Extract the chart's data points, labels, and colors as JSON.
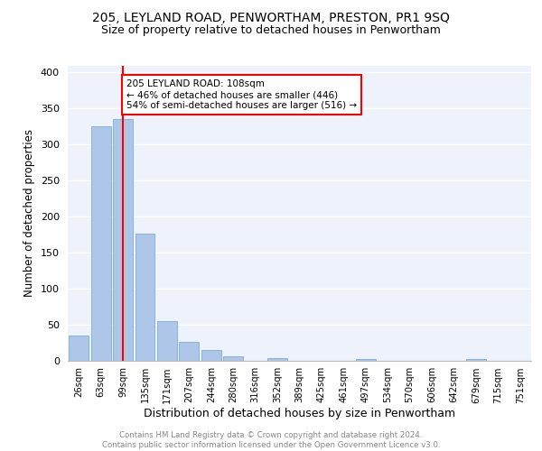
{
  "title1": "205, LEYLAND ROAD, PENWORTHAM, PRESTON, PR1 9SQ",
  "title2": "Size of property relative to detached houses in Penwortham",
  "xlabel": "Distribution of detached houses by size in Penwortham",
  "ylabel": "Number of detached properties",
  "footer1": "Contains HM Land Registry data © Crown copyright and database right 2024.",
  "footer2": "Contains public sector information licensed under the Open Government Licence v3.0.",
  "bin_labels": [
    "26sqm",
    "63sqm",
    "99sqm",
    "135sqm",
    "171sqm",
    "207sqm",
    "244sqm",
    "280sqm",
    "316sqm",
    "352sqm",
    "389sqm",
    "425sqm",
    "461sqm",
    "497sqm",
    "534sqm",
    "570sqm",
    "606sqm",
    "642sqm",
    "679sqm",
    "715sqm",
    "751sqm"
  ],
  "bar_heights": [
    35,
    325,
    335,
    176,
    55,
    26,
    15,
    6,
    0,
    4,
    0,
    0,
    0,
    3,
    0,
    0,
    0,
    0,
    2,
    0,
    0
  ],
  "bar_color": "#aec6e8",
  "bar_edge_color": "#7aaed6",
  "property_bin_index": 2,
  "annotation_text": "205 LEYLAND ROAD: 108sqm\n← 46% of detached houses are smaller (446)\n54% of semi-detached houses are larger (516) →",
  "annotation_box_color": "white",
  "annotation_box_edge_color": "red",
  "vline_color": "red",
  "ylim": [
    0,
    410
  ],
  "yticks": [
    0,
    50,
    100,
    150,
    200,
    250,
    300,
    350,
    400
  ],
  "background_color": "#eef2fb",
  "grid_color": "white",
  "title1_fontsize": 10,
  "title2_fontsize": 9,
  "xlabel_fontsize": 9,
  "ylabel_fontsize": 8.5
}
